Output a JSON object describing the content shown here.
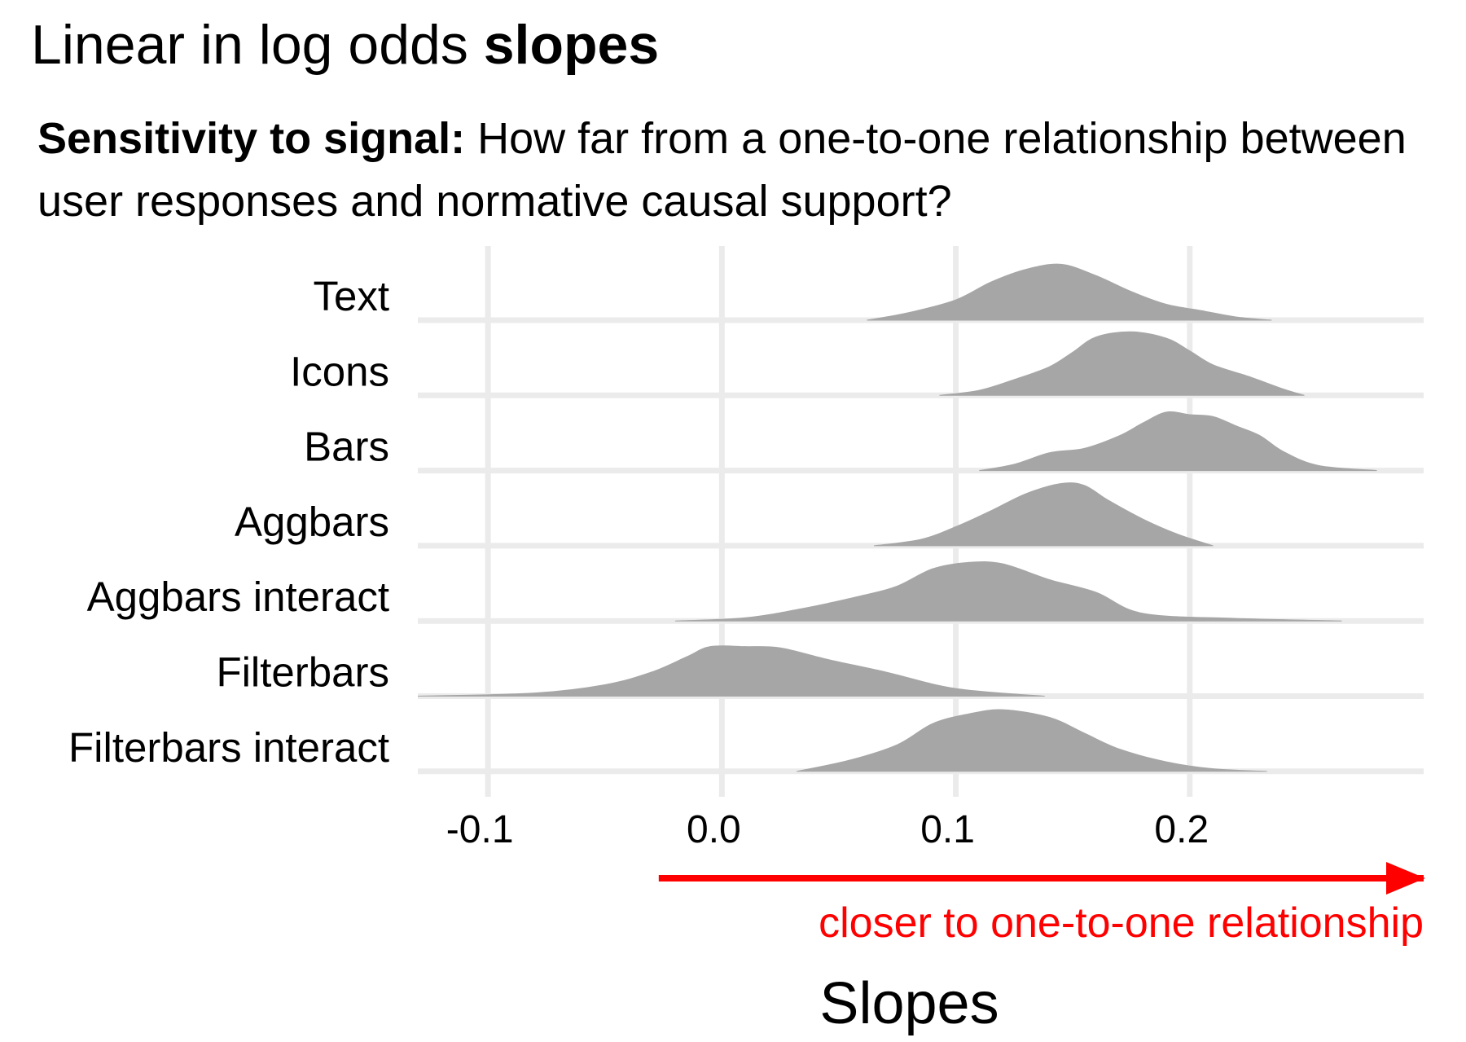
{
  "title": {
    "normal": "Linear in log odds ",
    "bold": "slopes"
  },
  "subtitle": {
    "bold": "Sensitivity to signal:",
    "normal": " How far from a one-to-one relationship between user responses and normative causal support?"
  },
  "chart_data": {
    "type": "ridgeline",
    "xlabel": "Slopes",
    "xlim": [
      -0.13,
      0.3
    ],
    "xticks": [
      -0.1,
      0.0,
      0.1,
      0.2
    ],
    "xtick_labels": [
      "-0.1",
      "0.0",
      "0.1",
      "0.2"
    ],
    "grid": true,
    "fill_color": "#a6a6a6",
    "grid_color": "#ebebeb",
    "annotation": {
      "text": "closer to one-to-one relationship",
      "color": "#ff0000",
      "arrow_from": -0.027,
      "arrow_to": 0.3
    },
    "categories": [
      "Text",
      "Icons",
      "Bars",
      "Aggbars",
      "Aggbars interact",
      "Filterbars",
      "Filterbars interact"
    ],
    "series": [
      {
        "name": "Text",
        "x": [
          0.062,
          0.08,
          0.1,
          0.115,
          0.13,
          0.145,
          0.16,
          0.175,
          0.19,
          0.205,
          0.22,
          0.235
        ],
        "density": [
          0.0,
          0.12,
          0.32,
          0.6,
          0.8,
          0.88,
          0.7,
          0.45,
          0.25,
          0.15,
          0.05,
          0.0
        ]
      },
      {
        "name": "Icons",
        "x": [
          0.093,
          0.11,
          0.125,
          0.14,
          0.15,
          0.16,
          0.175,
          0.19,
          0.2,
          0.21,
          0.225,
          0.24,
          0.249
        ],
        "density": [
          0.0,
          0.08,
          0.25,
          0.45,
          0.68,
          0.92,
          1.0,
          0.9,
          0.7,
          0.48,
          0.3,
          0.1,
          0.0
        ]
      },
      {
        "name": "Bars",
        "x": [
          0.11,
          0.125,
          0.14,
          0.155,
          0.17,
          0.18,
          0.19,
          0.2,
          0.21,
          0.22,
          0.23,
          0.24,
          0.255,
          0.28
        ],
        "density": [
          0.0,
          0.1,
          0.28,
          0.35,
          0.55,
          0.75,
          0.92,
          0.88,
          0.85,
          0.7,
          0.55,
          0.3,
          0.08,
          0.0
        ]
      },
      {
        "name": "Aggbars",
        "x": [
          0.065,
          0.085,
          0.1,
          0.115,
          0.13,
          0.145,
          0.155,
          0.165,
          0.18,
          0.195,
          0.21
        ],
        "density": [
          0.0,
          0.1,
          0.3,
          0.55,
          0.82,
          0.98,
          0.95,
          0.72,
          0.42,
          0.18,
          0.0
        ]
      },
      {
        "name": "Aggbars interact",
        "x": [
          -0.02,
          0.01,
          0.035,
          0.06,
          0.075,
          0.09,
          0.105,
          0.12,
          0.14,
          0.16,
          0.18,
          0.22,
          0.265
        ],
        "density": [
          0.0,
          0.05,
          0.2,
          0.4,
          0.55,
          0.82,
          0.92,
          0.9,
          0.65,
          0.45,
          0.12,
          0.04,
          0.0
        ]
      },
      {
        "name": "Filterbars",
        "x": [
          -0.13,
          -0.08,
          -0.05,
          -0.03,
          -0.015,
          -0.005,
          0.01,
          0.025,
          0.045,
          0.07,
          0.1,
          0.138
        ],
        "density": [
          0.0,
          0.05,
          0.18,
          0.38,
          0.62,
          0.78,
          0.78,
          0.76,
          0.58,
          0.38,
          0.12,
          0.0
        ]
      },
      {
        "name": "Filterbars interact",
        "x": [
          0.032,
          0.055,
          0.075,
          0.09,
          0.105,
          0.12,
          0.14,
          0.155,
          0.17,
          0.19,
          0.21,
          0.233
        ],
        "density": [
          0.0,
          0.18,
          0.42,
          0.75,
          0.9,
          0.97,
          0.85,
          0.6,
          0.35,
          0.15,
          0.04,
          0.0
        ]
      }
    ]
  }
}
